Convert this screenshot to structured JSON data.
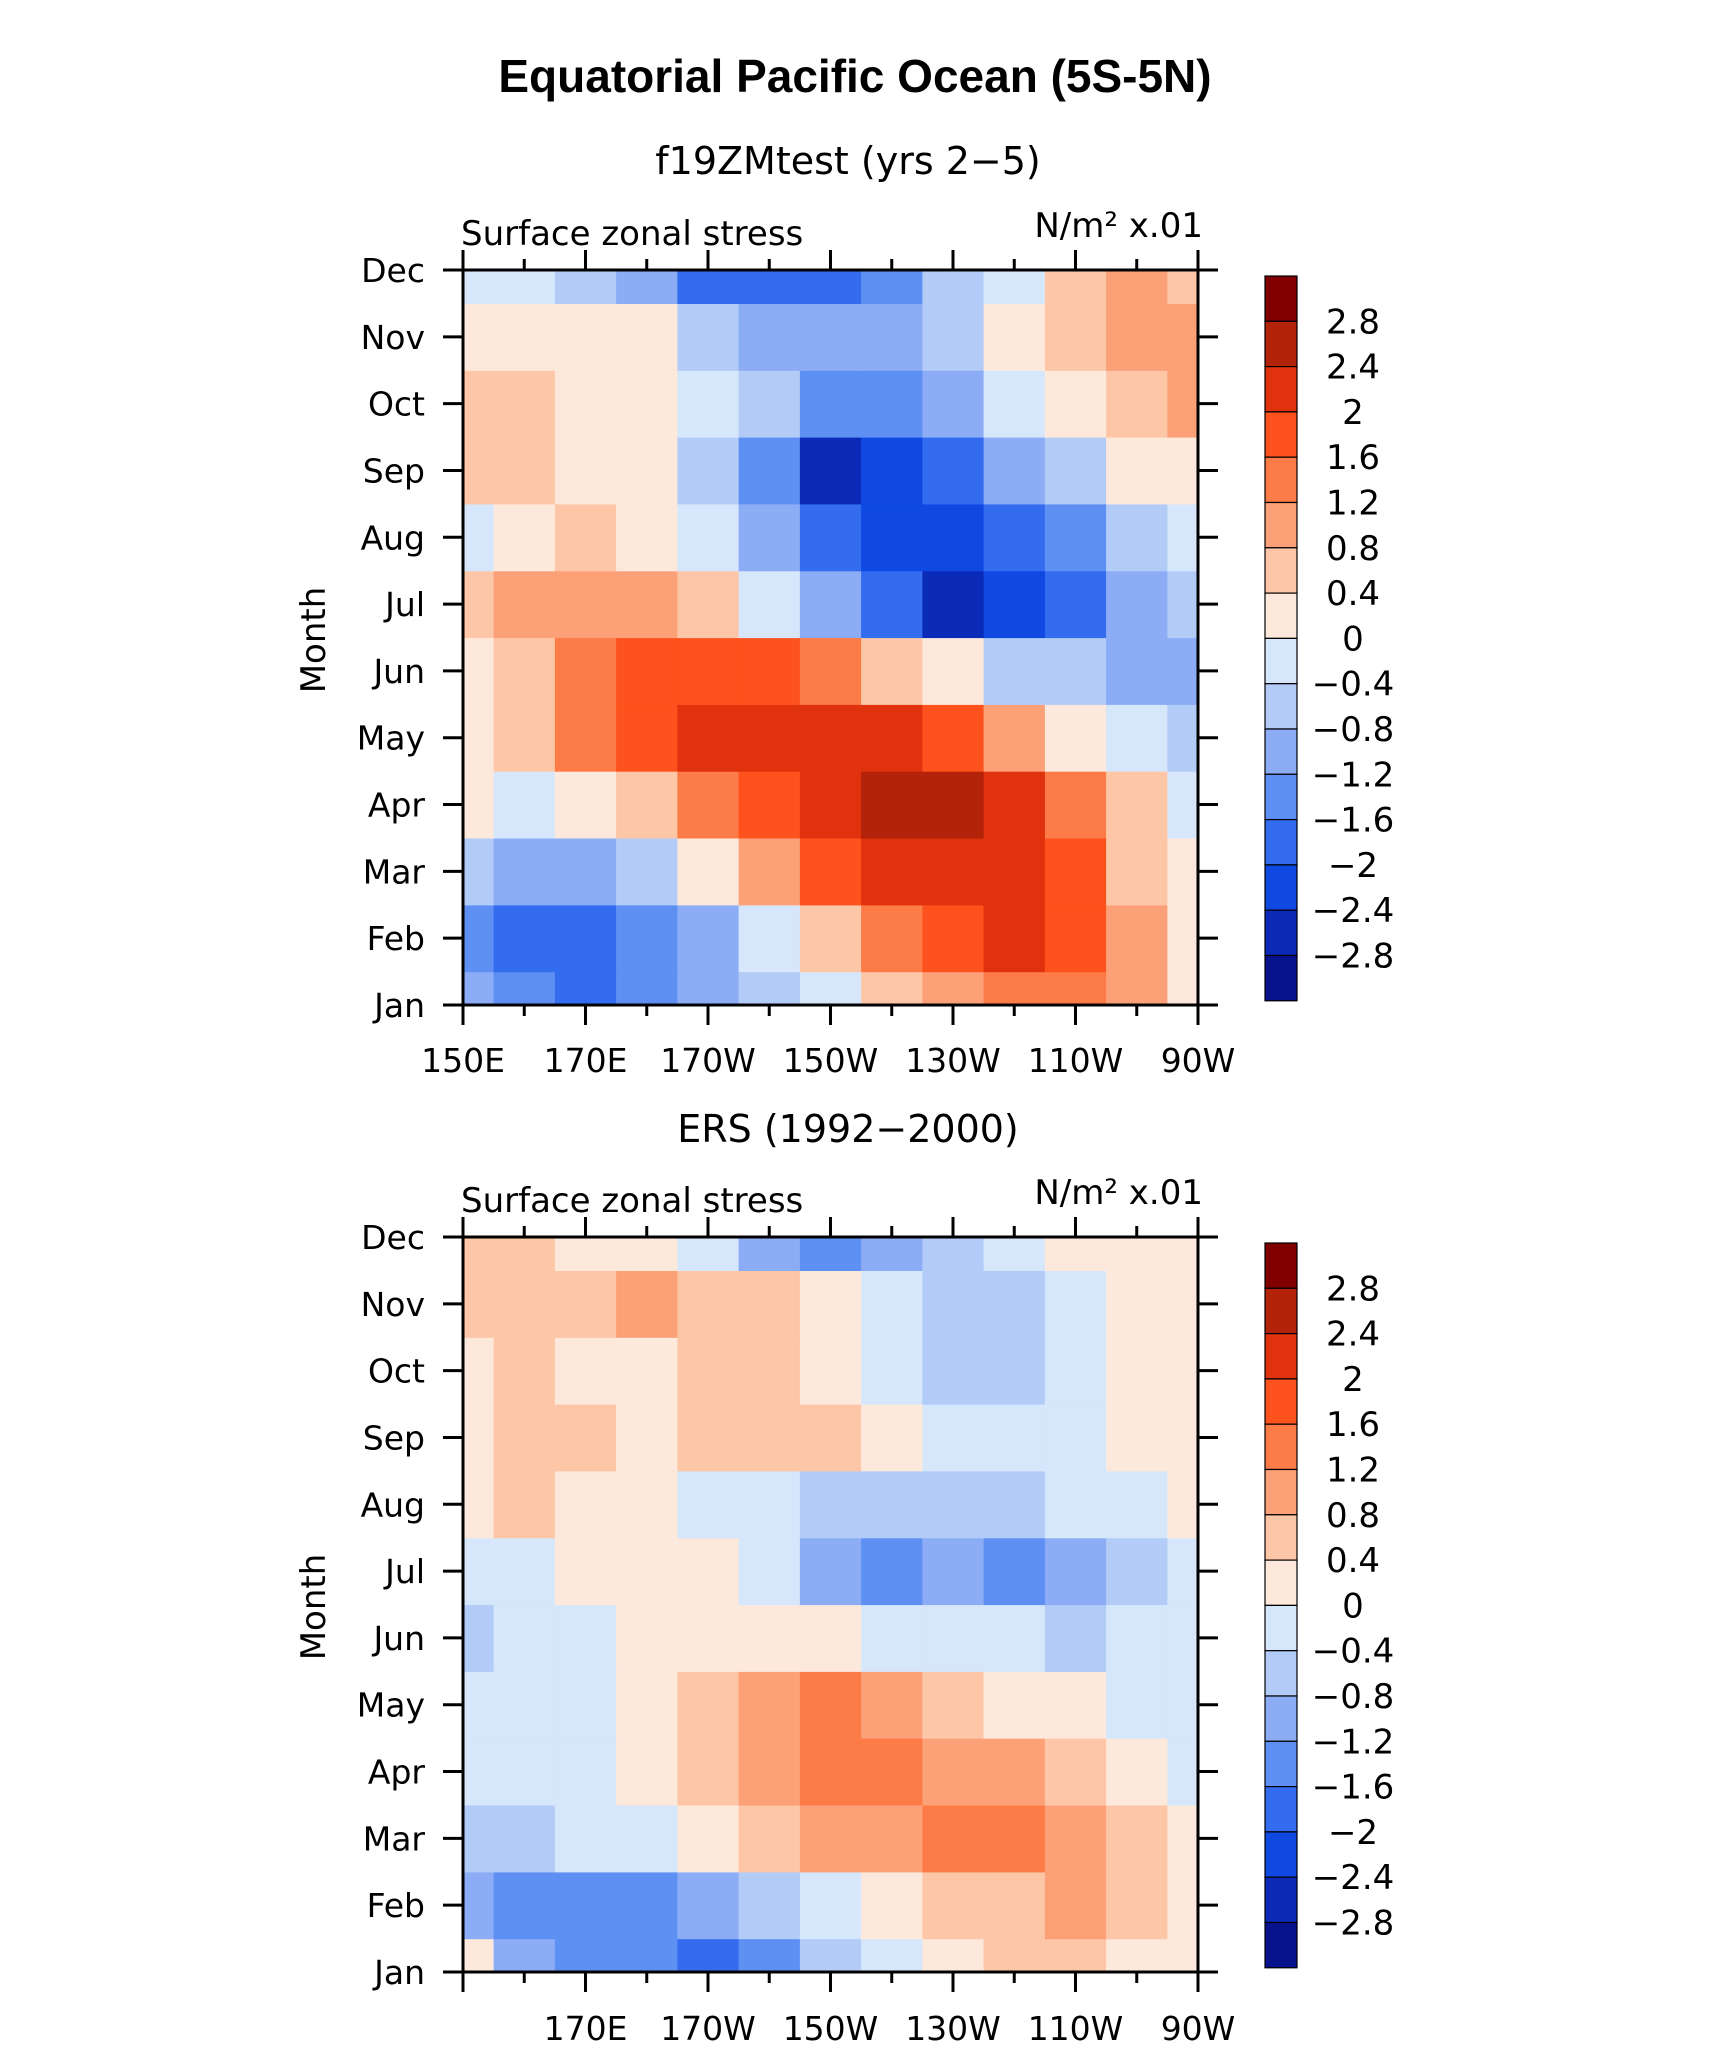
{
  "figure_title": "Equatorial Pacific Ocean (5S-5N)",
  "colorbar": {
    "levels": [
      "2.8",
      "2.4",
      "2",
      "1.6",
      "1.2",
      "0.8",
      "0.4",
      "0",
      "−0.4",
      "−0.8",
      "−1.2",
      "−1.6",
      "−2",
      "−2.4",
      "−2.8"
    ],
    "colors": [
      "#800000",
      "#b2230a",
      "#e0320c",
      "#fd521d",
      "#fc7b46",
      "#fca078",
      "#fdc6a6",
      "#fde9dc",
      "#d6e7fb",
      "#b2cbf7",
      "#8cadf6",
      "#5e8ff2",
      "#346cf0",
      "#0f49e2",
      "#0b2ab8",
      "#08128c"
    ]
  },
  "chart_data": [
    {
      "type": "heatmap",
      "panel_title": "f19ZMtest (yrs 2−5)",
      "left_label": "Surface zonal stress",
      "right_label": "N/m² x.01",
      "ylabel": "Month",
      "yticks": [
        "Jan",
        "Feb",
        "Mar",
        "Apr",
        "May",
        "Jun",
        "Jul",
        "Aug",
        "Sep",
        "Oct",
        "Nov",
        "Dec"
      ],
      "xticks": [
        "150E",
        "170E",
        "170W",
        "150W",
        "130W",
        "110W",
        "90W"
      ],
      "x_columns": [
        "150E",
        "160E",
        "170E",
        "180",
        "170W",
        "160W",
        "150W",
        "140W",
        "130W",
        "120W",
        "110W",
        "100W",
        "90W"
      ],
      "values": [
        [
          -1.2,
          -1.6,
          -1.8,
          -1.4,
          -1.0,
          -0.6,
          -0.2,
          0.4,
          0.9,
          1.3,
          1.5,
          0.8,
          0.2
        ],
        [
          -1.3,
          -2.0,
          -1.9,
          -1.5,
          -0.9,
          -0.3,
          0.5,
          1.2,
          1.7,
          2.0,
          1.7,
          0.9,
          0.1
        ],
        [
          -0.8,
          -1.2,
          -0.9,
          -0.5,
          0.2,
          0.9,
          1.6,
          2.2,
          2.4,
          2.2,
          1.6,
          0.7,
          0.0
        ],
        [
          0.0,
          -0.2,
          0.1,
          0.6,
          1.2,
          1.8,
          2.3,
          2.6,
          2.5,
          2.0,
          1.2,
          0.4,
          -0.2
        ],
        [
          0.3,
          0.6,
          1.2,
          1.6,
          2.0,
          2.1,
          2.2,
          2.0,
          1.6,
          1.0,
          0.3,
          -0.3,
          -0.6
        ],
        [
          0.3,
          0.7,
          1.3,
          1.7,
          1.8,
          1.6,
          1.2,
          0.6,
          0.0,
          -0.5,
          -0.8,
          -1.2,
          -0.9
        ],
        [
          0.4,
          0.8,
          1.0,
          0.8,
          0.4,
          -0.3,
          -1.2,
          -1.9,
          -2.6,
          -2.4,
          -2.0,
          -1.2,
          -0.6
        ],
        [
          -0.2,
          0.3,
          0.4,
          0.2,
          -0.4,
          -1.0,
          -1.8,
          -2.3,
          -2.3,
          -1.9,
          -1.3,
          -0.6,
          -0.2
        ],
        [
          0.4,
          0.6,
          0.3,
          0.0,
          -0.8,
          -1.6,
          -2.5,
          -2.2,
          -1.8,
          -1.2,
          -0.6,
          0.2,
          0.3
        ],
        [
          0.6,
          0.5,
          0.2,
          0.0,
          -0.4,
          -0.8,
          -1.4,
          -1.5,
          -1.0,
          -0.4,
          0.2,
          0.6,
          0.9
        ],
        [
          0.3,
          0.2,
          0.2,
          0.1,
          -0.5,
          -1.0,
          -1.2,
          -1.0,
          -0.6,
          0.0,
          0.6,
          0.8,
          0.9
        ],
        [
          -0.2,
          -0.4,
          -0.8,
          -1.2,
          -1.8,
          -2.0,
          -1.8,
          -1.4,
          -0.8,
          -0.2,
          0.5,
          0.8,
          0.7
        ]
      ]
    },
    {
      "type": "heatmap",
      "panel_title": "ERS (1992−2000)",
      "left_label": "Surface zonal stress",
      "right_label": "N/m² x.01",
      "ylabel": "Month",
      "yticks": [
        "Jan",
        "Feb",
        "Mar",
        "Apr",
        "May",
        "Jun",
        "Jul",
        "Aug",
        "Sep",
        "Oct",
        "Nov",
        "Dec"
      ],
      "xticks": [
        "170E",
        "170W",
        "150W",
        "130W",
        "110W",
        "90W"
      ],
      "x_columns": [
        "150E",
        "160E",
        "170E",
        "180",
        "170W",
        "160W",
        "150W",
        "140W",
        "130W",
        "120W",
        "110W",
        "100W",
        "90W"
      ],
      "values": [
        [
          0.1,
          -0.9,
          -1.3,
          -1.5,
          -1.7,
          -1.3,
          -0.8,
          -0.3,
          0.1,
          0.4,
          0.6,
          0.3,
          0.1
        ],
        [
          -0.9,
          -1.6,
          -1.6,
          -1.3,
          -1.1,
          -0.8,
          -0.2,
          0.2,
          0.5,
          0.7,
          0.8,
          0.5,
          0.2
        ],
        [
          -0.6,
          -0.8,
          -0.4,
          -0.2,
          0.2,
          0.6,
          0.9,
          1.1,
          1.3,
          1.4,
          1.0,
          0.5,
          0.1
        ],
        [
          -0.2,
          -0.3,
          -0.1,
          0.1,
          0.5,
          1.0,
          1.4,
          1.4,
          1.1,
          0.8,
          0.4,
          0.1,
          -0.1
        ],
        [
          -0.2,
          -0.2,
          -0.1,
          0.2,
          0.6,
          1.1,
          1.3,
          1.0,
          0.6,
          0.3,
          0.0,
          -0.1,
          -0.1
        ],
        [
          -0.6,
          -0.3,
          -0.1,
          0.1,
          0.3,
          0.3,
          0.1,
          -0.2,
          -0.3,
          -0.4,
          -0.5,
          -0.3,
          -0.2
        ],
        [
          -0.3,
          -0.1,
          0.1,
          0.2,
          0.0,
          -0.3,
          -0.9,
          -1.4,
          -1.2,
          -1.4,
          -1.0,
          -0.6,
          -0.3
        ],
        [
          0.2,
          0.4,
          0.3,
          0.1,
          -0.1,
          -0.4,
          -0.7,
          -0.8,
          -0.8,
          -0.6,
          -0.4,
          -0.2,
          0.1
        ],
        [
          0.3,
          0.5,
          0.4,
          0.3,
          0.5,
          0.7,
          0.6,
          0.2,
          -0.2,
          -0.3,
          -0.2,
          0.1,
          0.3
        ],
        [
          0.3,
          0.4,
          0.3,
          0.3,
          0.4,
          0.5,
          0.2,
          -0.3,
          -0.6,
          -0.6,
          -0.3,
          0.0,
          0.2
        ],
        [
          0.4,
          0.6,
          0.5,
          0.8,
          0.7,
          0.5,
          0.3,
          -0.2,
          -0.5,
          -0.7,
          -0.4,
          0.1,
          0.3
        ],
        [
          0.6,
          0.4,
          0.2,
          0.1,
          -0.4,
          -1.0,
          -1.6,
          -1.2,
          -0.6,
          -0.2,
          0.1,
          0.2,
          0.3
        ]
      ]
    }
  ]
}
